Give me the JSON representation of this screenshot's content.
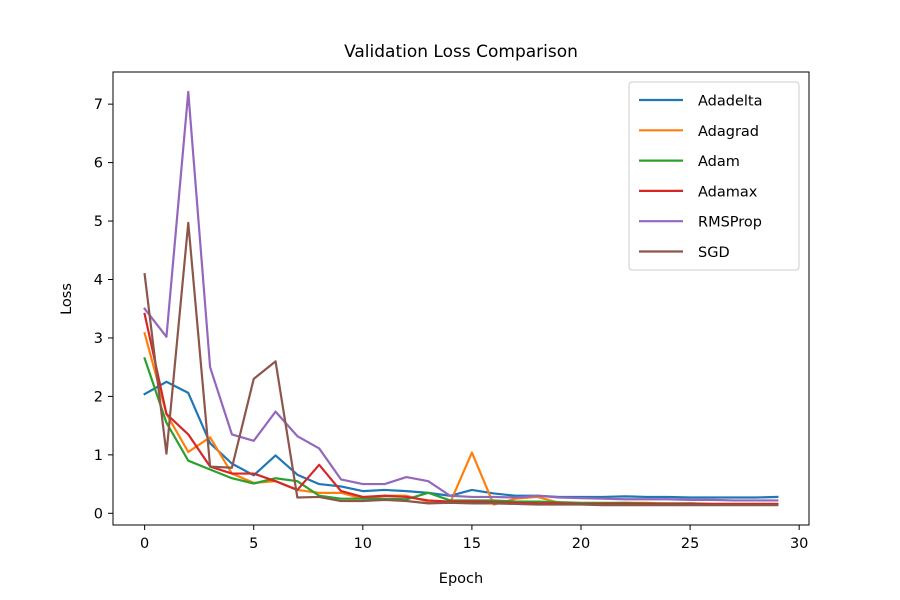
{
  "chart_data": {
    "type": "line",
    "title": "Validation Loss Comparison",
    "xlabel": "Epoch",
    "ylabel": "Loss",
    "xlim": [
      -1.45,
      30.45
    ],
    "ylim": [
      -0.2,
      7.55
    ],
    "xticks": [
      0,
      5,
      10,
      15,
      20,
      25,
      30
    ],
    "yticks": [
      0,
      1,
      2,
      3,
      4,
      5,
      6,
      7
    ],
    "grid": false,
    "legend_position": "top-right",
    "x": [
      0,
      1,
      2,
      3,
      4,
      5,
      6,
      7,
      8,
      9,
      10,
      11,
      12,
      13,
      14,
      15,
      16,
      17,
      18,
      19,
      20,
      21,
      22,
      23,
      24,
      25,
      26,
      27,
      28,
      29
    ],
    "series": [
      {
        "name": "Adadelta",
        "color": "#1f77b4",
        "values": [
          2.04,
          2.25,
          2.06,
          1.2,
          0.85,
          0.65,
          0.99,
          0.66,
          0.5,
          0.46,
          0.38,
          0.4,
          0.38,
          0.35,
          0.3,
          0.4,
          0.34,
          0.3,
          0.3,
          0.28,
          0.28,
          0.28,
          0.29,
          0.28,
          0.28,
          0.27,
          0.27,
          0.27,
          0.27,
          0.28
        ]
      },
      {
        "name": "Adagrad",
        "color": "#ff7f0e",
        "values": [
          3.08,
          1.7,
          1.05,
          1.3,
          0.68,
          0.52,
          0.55,
          0.4,
          0.35,
          0.35,
          0.25,
          0.3,
          0.3,
          0.2,
          0.18,
          1.04,
          0.15,
          0.25,
          0.28,
          0.18,
          0.17,
          0.17,
          0.18,
          0.18,
          0.16,
          0.17,
          0.16,
          0.16,
          0.16,
          0.16
        ]
      },
      {
        "name": "Adam",
        "color": "#2ca02c",
        "values": [
          2.65,
          1.55,
          0.9,
          0.75,
          0.6,
          0.51,
          0.6,
          0.55,
          0.3,
          0.25,
          0.25,
          0.25,
          0.24,
          0.35,
          0.22,
          0.22,
          0.22,
          0.2,
          0.2,
          0.19,
          0.18,
          0.18,
          0.18,
          0.17,
          0.17,
          0.17,
          0.16,
          0.16,
          0.16,
          0.16
        ]
      },
      {
        "name": "Adamax",
        "color": "#d62728",
        "values": [
          3.41,
          1.7,
          1.35,
          0.8,
          0.68,
          0.68,
          0.55,
          0.4,
          0.83,
          0.38,
          0.28,
          0.3,
          0.28,
          0.22,
          0.2,
          0.2,
          0.19,
          0.18,
          0.17,
          0.17,
          0.16,
          0.16,
          0.16,
          0.16,
          0.16,
          0.16,
          0.16,
          0.16,
          0.16,
          0.16
        ]
      },
      {
        "name": "RMSProp",
        "color": "#9467bd",
        "values": [
          3.5,
          3.02,
          7.21,
          2.5,
          1.35,
          1.24,
          1.74,
          1.32,
          1.11,
          0.58,
          0.5,
          0.5,
          0.62,
          0.55,
          0.3,
          0.28,
          0.28,
          0.27,
          0.3,
          0.27,
          0.26,
          0.25,
          0.24,
          0.24,
          0.24,
          0.23,
          0.23,
          0.22,
          0.22,
          0.22
        ]
      },
      {
        "name": "SGD",
        "color": "#8c564b",
        "values": [
          4.09,
          1.02,
          4.97,
          0.8,
          0.78,
          2.3,
          2.6,
          0.27,
          0.28,
          0.21,
          0.21,
          0.23,
          0.21,
          0.17,
          0.18,
          0.17,
          0.17,
          0.16,
          0.15,
          0.15,
          0.15,
          0.14,
          0.14,
          0.14,
          0.14,
          0.14,
          0.14,
          0.14,
          0.14,
          0.14
        ]
      }
    ]
  }
}
